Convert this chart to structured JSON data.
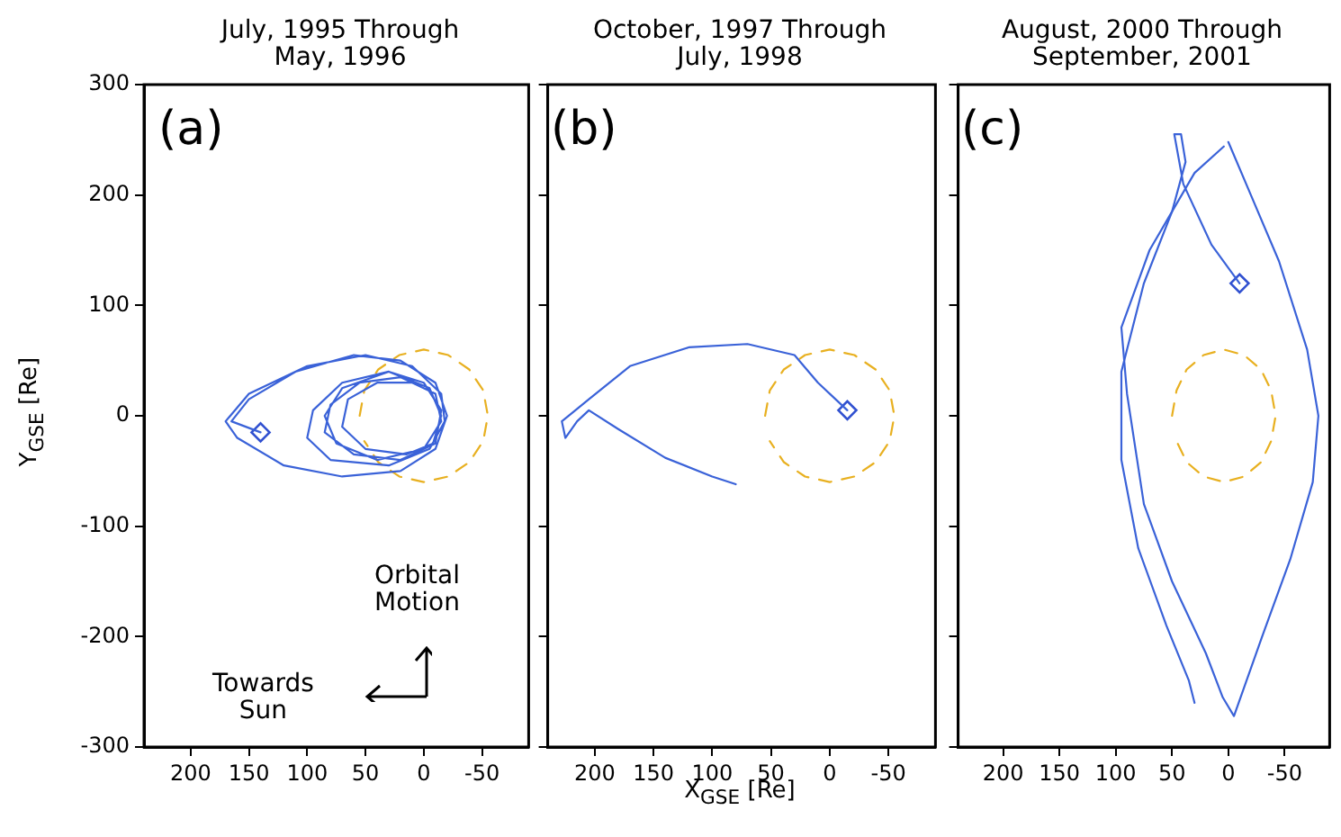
{
  "chart_data": [
    {
      "type": "line",
      "title": "July, 1995 Through\nMay, 1996",
      "ylabel": "Y$_{GSE}$ [Re]",
      "xlim": [
        240,
        -90
      ],
      "ylim": [
        -300,
        300
      ],
      "xticks": [
        200,
        150,
        100,
        50,
        0,
        -50
      ],
      "yticks": [
        -300,
        -200,
        -100,
        0,
        100,
        200,
        300
      ],
      "grid": false,
      "marker": "none",
      "line_style": "solid",
      "annotations": [
        "(a)",
        "Orbital\nMotion",
        "Towards\nSun"
      ],
      "series": [
        {
          "color": "#3a62d8",
          "x": [
            140,
            165,
            150,
            110,
            60,
            20,
            -10,
            -20,
            -10,
            20,
            70,
            120,
            160,
            170,
            150,
            100,
            50,
            10,
            -15,
            -18,
            -5,
            30,
            80,
            100,
            95,
            70,
            30,
            0,
            -15,
            -10,
            20,
            60,
            85,
            80,
            55,
            20,
            -10,
            -15,
            0,
            40,
            75,
            85,
            70,
            30,
            -5,
            -15,
            -8,
            15,
            50,
            70,
            65,
            40,
            10
          ],
          "values": [
            -15,
            -5,
            15,
            40,
            55,
            50,
            30,
            0,
            -30,
            -50,
            -55,
            -45,
            -20,
            -5,
            20,
            45,
            55,
            45,
            20,
            -5,
            -30,
            -45,
            -40,
            -20,
            5,
            30,
            40,
            30,
            5,
            -25,
            -40,
            -35,
            -15,
            10,
            30,
            35,
            20,
            -5,
            -30,
            -40,
            -25,
            0,
            25,
            40,
            25,
            0,
            -25,
            -35,
            -30,
            -10,
            15,
            30,
            30
          ]
        },
        {
          "color": "#e8b020",
          "line_style": "dashed",
          "x": [
            55,
            51,
            39,
            21,
            0,
            -21,
            -39,
            -51,
            -55,
            -51,
            -39,
            -21,
            0,
            21,
            39,
            51
          ],
          "values": [
            0,
            23,
            42,
            55,
            60,
            55,
            42,
            23,
            0,
            -23,
            -42,
            -55,
            -60,
            -55,
            -42,
            -23
          ]
        },
        {
          "type": "scatter",
          "color": "#3050d0",
          "marker": "diamond",
          "x": [
            140
          ],
          "values": [
            -15
          ]
        }
      ]
    },
    {
      "type": "line",
      "title": "October, 1997 Through\nJuly, 1998",
      "xlabel": "X$_{GSE}$ [Re]",
      "xlim": [
        240,
        -90
      ],
      "ylim": [
        -300,
        300
      ],
      "xticks": [
        200,
        150,
        100,
        50,
        0,
        -50
      ],
      "yticks": [
        -300,
        -200,
        -100,
        0,
        100,
        200,
        300
      ],
      "tick_labels": "x",
      "grid": false,
      "marker": "none",
      "line_style": "solid",
      "annotations": [
        "(b)"
      ],
      "series": [
        {
          "color": "#3a62d8",
          "x": [
            -15,
            -5,
            10,
            30,
            70,
            120,
            170,
            205,
            220,
            228,
            225,
            215,
            205,
            180,
            140,
            100,
            80
          ],
          "values": [
            5,
            15,
            30,
            55,
            65,
            62,
            45,
            15,
            2,
            -5,
            -20,
            -5,
            5,
            -12,
            -38,
            -55,
            -62
          ]
        },
        {
          "color": "#e8b020",
          "line_style": "dashed",
          "x": [
            55,
            51,
            39,
            21,
            0,
            -21,
            -39,
            -51,
            -55,
            -51,
            -39,
            -21,
            0,
            21,
            39,
            51
          ],
          "values": [
            0,
            23,
            42,
            55,
            60,
            55,
            42,
            23,
            0,
            -23,
            -42,
            -55,
            -60,
            -55,
            -42,
            -23
          ]
        },
        {
          "type": "scatter",
          "color": "#3050d0",
          "marker": "diamond",
          "x": [
            -15
          ],
          "values": [
            5
          ]
        }
      ]
    },
    {
      "type": "line",
      "title": "August, 2000 Through\nSeptember, 2001",
      "xlim": [
        240,
        -90
      ],
      "ylim": [
        -300,
        300
      ],
      "xticks": [
        200,
        150,
        100,
        50,
        0,
        -50
      ],
      "yticks": [
        -300,
        -200,
        -100,
        0,
        100,
        200,
        300
      ],
      "tick_labels": "x",
      "grid": false,
      "marker": "none",
      "line_style": "solid",
      "annotations": [
        "(c)"
      ],
      "series": [
        {
          "color": "#3a62d8",
          "x": [
            -10,
            15,
            40,
            48,
            42,
            38,
            50,
            75,
            95,
            95,
            80,
            55,
            35,
            30
          ],
          "values": [
            120,
            155,
            210,
            255,
            255,
            230,
            185,
            120,
            40,
            -40,
            -120,
            -190,
            -240,
            -260
          ]
        },
        {
          "color": "#3a62d8",
          "x": [
            0,
            -20,
            -45,
            -70,
            -80,
            -75,
            -55,
            -30,
            -5,
            5,
            20,
            50,
            75,
            90,
            95,
            70,
            30,
            4
          ],
          "values": [
            248,
            200,
            140,
            60,
            0,
            -60,
            -130,
            -200,
            -272,
            -255,
            -215,
            -150,
            -80,
            20,
            80,
            150,
            220,
            244
          ]
        },
        {
          "color": "#e8b020",
          "line_style": "dashed",
          "x": [
            50,
            46,
            37,
            22,
            4,
            -14,
            -29,
            -38,
            -42,
            -38,
            -29,
            -14,
            4,
            22,
            37,
            46
          ],
          "values": [
            0,
            23,
            42,
            55,
            60,
            55,
            42,
            23,
            0,
            -23,
            -42,
            -55,
            -60,
            -55,
            -42,
            -23
          ]
        },
        {
          "type": "scatter",
          "color": "#3050d0",
          "marker": "diamond",
          "x": [
            -10
          ],
          "values": [
            120
          ]
        }
      ]
    }
  ]
}
